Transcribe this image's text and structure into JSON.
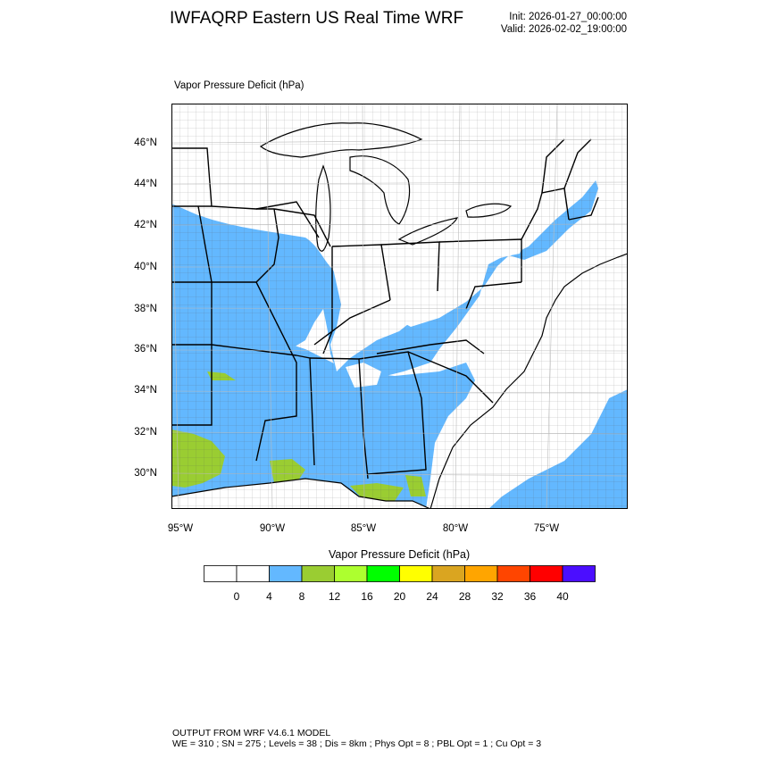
{
  "header": {
    "title": "IWFAQRP Eastern US Real Time WRF",
    "init": "Init: 2026-01-27_00:00:00",
    "valid": "Valid: 2026-02-02_19:00:00"
  },
  "map": {
    "field_label": "Vapor Pressure Deficit   (hPa)",
    "lat_labels": [
      "46°N",
      "44°N",
      "42°N",
      "40°N",
      "38°N",
      "36°N",
      "34°N",
      "32°N",
      "30°N"
    ],
    "lon_labels": [
      "95°W",
      "90°W",
      "85°W",
      "80°W",
      "75°W"
    ],
    "colors": {
      "water": "#ffffff",
      "lake": "#ffffff",
      "vpd_4_8": "#63b8ff",
      "vpd_8_12": "#9acd32",
      "boundary": "#000000",
      "county": "#444444"
    }
  },
  "colorbar": {
    "title": "Vapor Pressure Deficit  (hPa)",
    "colors": [
      "#ffffff",
      "#ffffff",
      "#63b8ff",
      "#9acd32",
      "#adff2f",
      "#00ff00",
      "#ffff00",
      "#daa520",
      "#ffa500",
      "#ff4500",
      "#ff0000",
      "#4b0eff"
    ],
    "labels": [
      "0",
      "4",
      "8",
      "12",
      "16",
      "20",
      "24",
      "28",
      "32",
      "36",
      "40"
    ]
  },
  "footer": {
    "line1": "OUTPUT FROM WRF V4.6.1 MODEL",
    "line2": "WE = 310 ; SN = 275 ; Levels = 38 ; Dis = 8km ; Phys Opt = 8 ; PBL Opt = 1 ; Cu Opt = 3"
  }
}
